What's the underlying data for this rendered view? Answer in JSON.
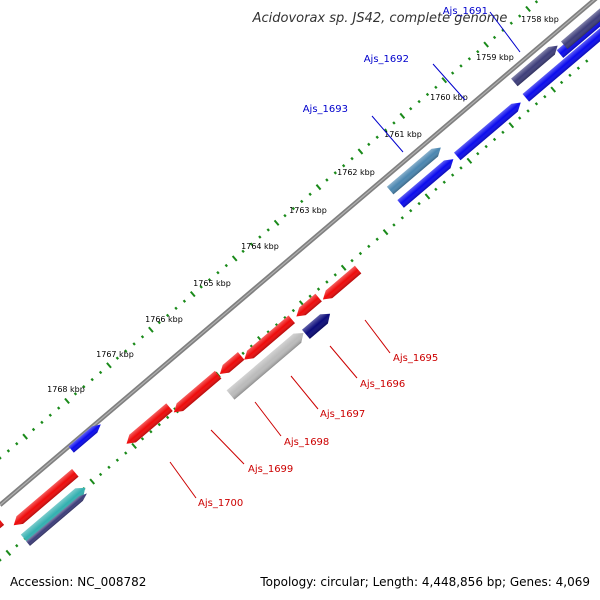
{
  "title": "Acidovorax sp. JS42, complete genome",
  "footer": {
    "accession": "Accession: NC_008782",
    "summary": "Topology: circular; Length: 4,448,856 bp; Genes: 4,069"
  },
  "ticks": [
    "1758 kbp",
    "1759 kbp",
    "1760 kbp",
    "1761 kbp",
    "1762 kbp",
    "1763 kbp",
    "1764 kbp",
    "1765 kbp",
    "1766 kbp",
    "1767 kbp",
    "1768 kbp"
  ],
  "forward_genes": [
    "Ajs_1691",
    "Ajs_1692",
    "Ajs_1693"
  ],
  "reverse_genes": [
    "Ajs_1695",
    "Ajs_1696",
    "Ajs_1697",
    "Ajs_1698",
    "Ajs_1699",
    "Ajs_1700"
  ],
  "colors": {
    "forward_label": "#0000cc",
    "reverse_label": "#cc0000",
    "backbone": "#808080",
    "tick": "#1a8a1a",
    "gene_blue": "#0a0aee",
    "gene_red": "#ee0a0a",
    "gene_slate": "#3d3d7a",
    "gene_steel": "#4a86b0",
    "gene_navy": "#0a0a7a",
    "gene_grey": "#bbbbbb",
    "gene_teal": "#33b0b0"
  }
}
